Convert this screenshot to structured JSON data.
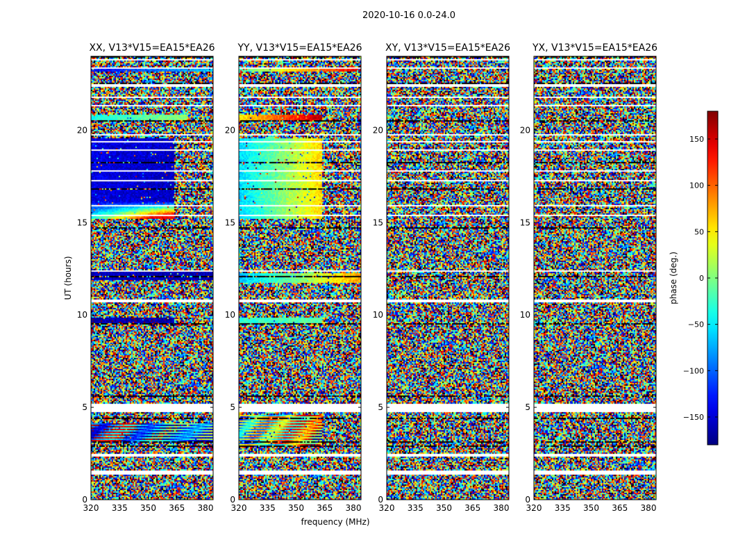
{
  "figure_title": "2020-10-16 0.0-24.0",
  "chart_data": {
    "type": "heatmap",
    "title": "2020-10-16 0.0-24.0",
    "xlabel": "frequency (MHz)",
    "ylabel": "UT (hours)",
    "xlim": [
      320,
      384
    ],
    "ylim": [
      0,
      24
    ],
    "xticks": [
      320,
      335,
      350,
      365,
      380
    ],
    "yticks": [
      0,
      5,
      10,
      15,
      20
    ],
    "colormap": "jet",
    "colorbar": {
      "label": "phase (deg.)",
      "range": [
        -180,
        180
      ],
      "ticks": [
        -150,
        -100,
        -50,
        0,
        50,
        100,
        150
      ],
      "tick_labels": [
        "−150",
        "−100",
        "−50",
        "0",
        "50",
        "100",
        "150"
      ]
    },
    "blank_rows_hours": [
      [
        1.4,
        1.65
      ],
      [
        2.35,
        2.5
      ],
      [
        4.8,
        5.2
      ],
      [
        10.75,
        10.85
      ],
      [
        12.35,
        12.45
      ],
      [
        15.35,
        15.45
      ],
      [
        15.9,
        15.95
      ],
      [
        17.3,
        17.35
      ],
      [
        17.8,
        17.85
      ],
      [
        18.9,
        19.0
      ],
      [
        19.4,
        19.45
      ],
      [
        19.75,
        19.82
      ],
      [
        21.35,
        21.4
      ],
      [
        21.75,
        21.85
      ],
      [
        22.4,
        22.5
      ],
      [
        23.35,
        23.45
      ],
      [
        23.8,
        23.9
      ]
    ],
    "dark_rows_hours": [
      [
        2.9,
        2.95
      ],
      [
        3.15,
        3.2
      ],
      [
        4.4,
        4.45
      ],
      [
        5.6,
        5.65
      ],
      [
        9.55,
        9.6
      ],
      [
        12.1,
        12.15
      ],
      [
        14.7,
        14.75
      ],
      [
        16.85,
        16.9
      ],
      [
        18.25,
        18.3
      ],
      [
        20.5,
        20.6
      ],
      [
        22.55,
        22.62
      ],
      [
        24.0,
        24.05
      ]
    ],
    "panels": [
      {
        "title": "XX, V13*V15=EA15*EA26",
        "coherent_bands": [
          {
            "from_hour": 15.2,
            "to_hour": 19.6,
            "freq_limit": 363,
            "phase_start": -145,
            "phase_end": -155,
            "ramp_hour": 16.2,
            "ramp_phase": 140
          },
          {
            "from_hour": 11.9,
            "to_hour": 12.4,
            "freq_limit": 384,
            "phase_start": -160,
            "phase_end": -160
          },
          {
            "from_hour": 9.6,
            "to_hour": 9.9,
            "freq_limit": 363,
            "phase_start": -165,
            "phase_end": -165
          },
          {
            "from_hour": 20.6,
            "to_hour": 20.9,
            "freq_limit": 370,
            "phase_start": -40,
            "phase_end": 10
          },
          {
            "from_hour": 23.2,
            "to_hour": 23.45,
            "freq_limit": 384,
            "phase_start": -140,
            "phase_end": -60
          },
          {
            "from_hour": 3.2,
            "to_hour": 4.2,
            "freq_limit": 384,
            "striped": true,
            "phase_start": -150,
            "phase_end": -60
          }
        ]
      },
      {
        "title": "YY, V13*V15=EA15*EA26",
        "coherent_bands": [
          {
            "from_hour": 15.2,
            "to_hour": 19.6,
            "freq_limit": 363,
            "phase_start": -60,
            "phase_end": 60
          },
          {
            "from_hour": 20.5,
            "to_hour": 20.9,
            "freq_limit": 363,
            "phase_start": 50,
            "phase_end": 160
          },
          {
            "from_hour": 23.2,
            "to_hour": 23.45,
            "freq_limit": 384,
            "phase_start": -20,
            "phase_end": 150
          },
          {
            "from_hour": 11.8,
            "to_hour": 12.3,
            "freq_limit": 384,
            "phase_start": -70,
            "phase_end": 80
          },
          {
            "from_hour": 9.6,
            "to_hour": 9.9,
            "freq_limit": 363,
            "phase_start": -30,
            "phase_end": -10
          },
          {
            "from_hour": 3.0,
            "to_hour": 4.6,
            "freq_limit": 363,
            "striped": true,
            "phase_start": -40,
            "phase_end": 100
          }
        ]
      },
      {
        "title": "XY, V13*V15=EA15*EA26",
        "coherent_bands": []
      },
      {
        "title": "YX, V13*V15=EA15*EA26",
        "coherent_bands": []
      }
    ]
  }
}
